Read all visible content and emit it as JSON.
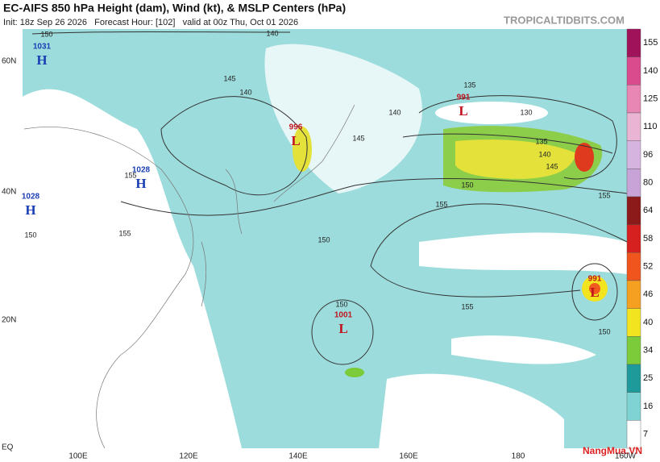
{
  "header": {
    "title": "EC-AIFS 850 hPa Height (dam), Wind (kt), & MSLP Centers (hPa)",
    "init": "Init: 18z Sep 26 2026   Forecast Hour: [102]   valid at 00z Thu, Oct 01 2026",
    "site": "TROPICALTIDBITS.COM"
  },
  "map": {
    "lat_labels": [
      "60N",
      "40N",
      "20N",
      "EQ"
    ],
    "lon_labels": [
      "100E",
      "120E",
      "140E",
      "160E",
      "180",
      "160W"
    ],
    "centers": [
      {
        "type": "H",
        "pressure": "1031"
      },
      {
        "type": "H",
        "pressure": "1028"
      },
      {
        "type": "H",
        "pressure": "1028"
      },
      {
        "type": "L",
        "pressure": "996"
      },
      {
        "type": "L",
        "pressure": "991"
      },
      {
        "type": "L",
        "pressure": "1001"
      },
      {
        "type": "L",
        "pressure": "991"
      }
    ],
    "contour_labels": [
      "150",
      "140",
      "145",
      "140",
      "140",
      "145",
      "135",
      "130",
      "135",
      "140",
      "145",
      "150",
      "155",
      "155",
      "150",
      "155",
      "150",
      "150",
      "155",
      "155",
      "150"
    ]
  },
  "colorbar": {
    "segments": [
      {
        "label": "155",
        "color": "#a0135a"
      },
      {
        "label": "140",
        "color": "#d94b8c"
      },
      {
        "label": "125",
        "color": "#e887b4"
      },
      {
        "label": "110",
        "color": "#eab4d4"
      },
      {
        "label": "96",
        "color": "#d5b5e0"
      },
      {
        "label": "80",
        "color": "#c8a3d8"
      },
      {
        "label": "64",
        "color": "#8c1a1a"
      },
      {
        "label": "58",
        "color": "#d62020"
      },
      {
        "label": "52",
        "color": "#f0551e"
      },
      {
        "label": "46",
        "color": "#f5a020"
      },
      {
        "label": "40",
        "color": "#f2e41e"
      },
      {
        "label": "34",
        "color": "#7ccb3a"
      },
      {
        "label": "25",
        "color": "#1f9a9a"
      },
      {
        "label": "16",
        "color": "#7fd3d3"
      },
      {
        "label": "7",
        "color": "#ffffff"
      }
    ]
  },
  "watermark": "NangMua.VN"
}
